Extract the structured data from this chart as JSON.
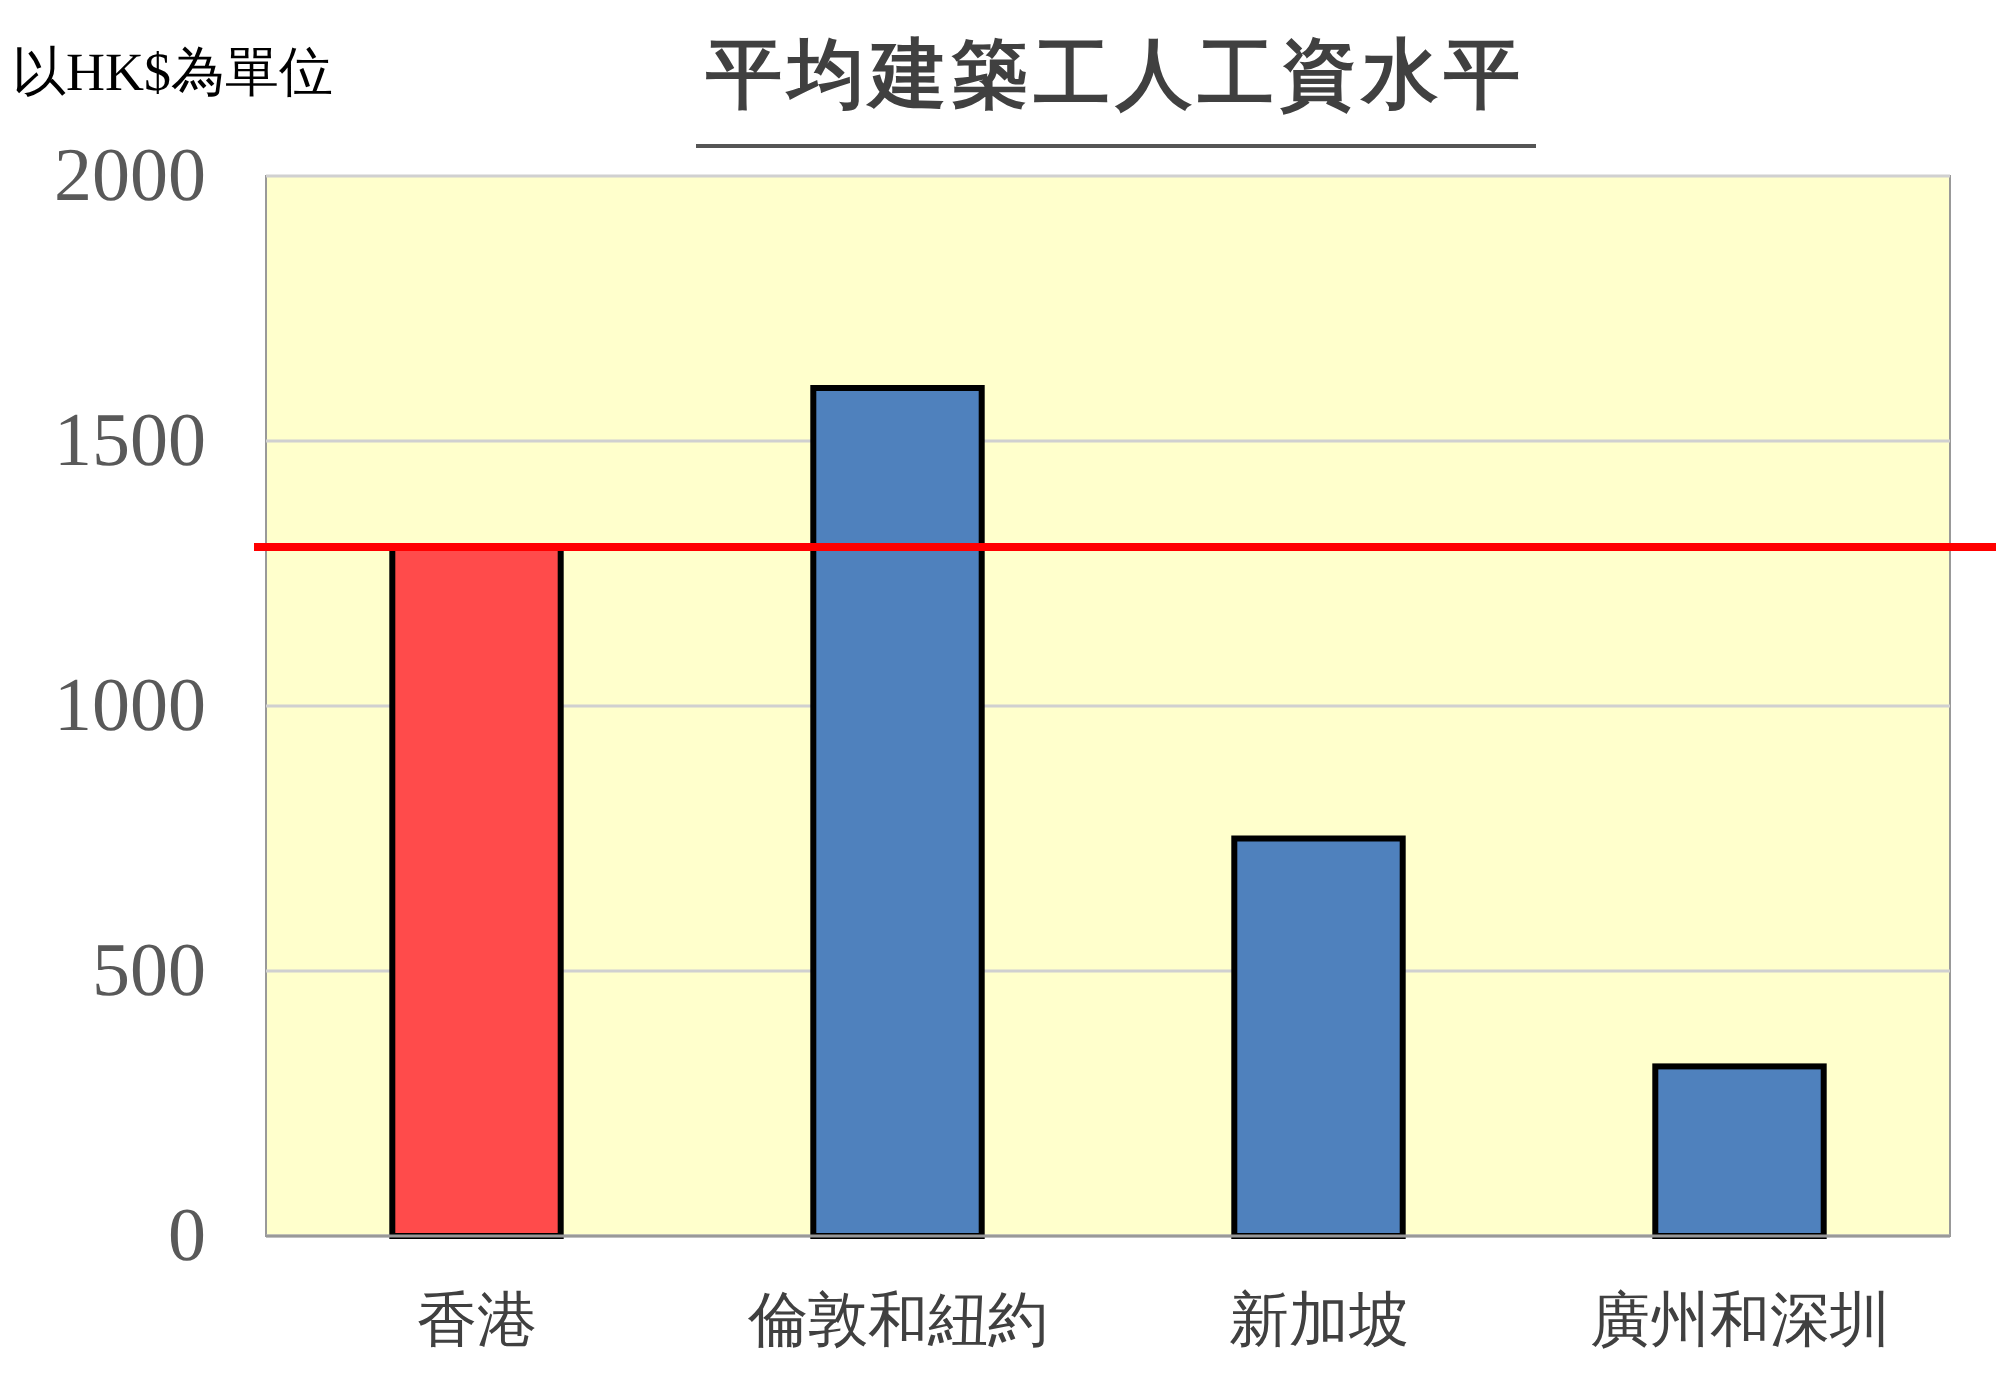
{
  "chart_data": {
    "type": "bar",
    "title": "平均建築工人工資水平",
    "ylabel": "以HK$為單位",
    "categories": [
      "香港",
      "倫敦和紐約",
      "新加坡",
      "廣州和深圳"
    ],
    "values": [
      1300,
      1600,
      750,
      320
    ],
    "colors": [
      "#ff4b4b",
      "#4f81bd",
      "#4f81bd",
      "#4f81bd"
    ],
    "ylim": [
      0,
      2000
    ],
    "yticks": [
      0,
      500,
      1000,
      1500,
      2000
    ],
    "grid": "y",
    "ref_lines": [
      {
        "axis": "y",
        "value": 1300,
        "color": "#ff0000"
      }
    ]
  }
}
